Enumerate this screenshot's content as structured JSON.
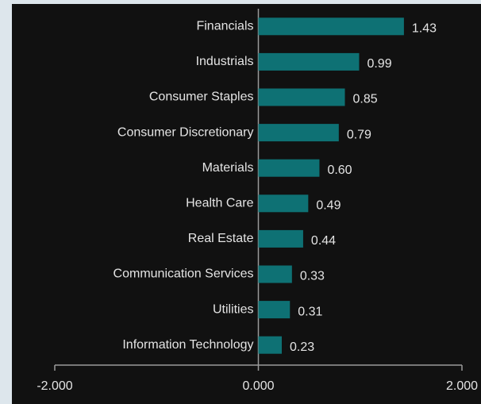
{
  "chart_data": {
    "type": "bar",
    "orientation": "horizontal",
    "categories": [
      "Financials",
      "Industrials",
      "Consumer Staples",
      "Consumer Discretionary",
      "Materials",
      "Health Care",
      "Real Estate",
      "Communication Services",
      "Utilities",
      "Information Technology"
    ],
    "values": [
      1.43,
      0.99,
      0.85,
      0.79,
      0.6,
      0.49,
      0.44,
      0.33,
      0.31,
      0.23
    ],
    "value_labels": [
      "1.43",
      "0.99",
      "0.85",
      "0.79",
      "0.60",
      "0.49",
      "0.44",
      "0.33",
      "0.31",
      "0.23"
    ],
    "color": "#0e7174",
    "xlim": [
      -2,
      2
    ],
    "xticks": [
      {
        "value": -2,
        "label": "-2.000"
      },
      {
        "value": 0,
        "label": "0.000"
      },
      {
        "value": 2,
        "label": "2.000"
      }
    ],
    "grid": false
  }
}
